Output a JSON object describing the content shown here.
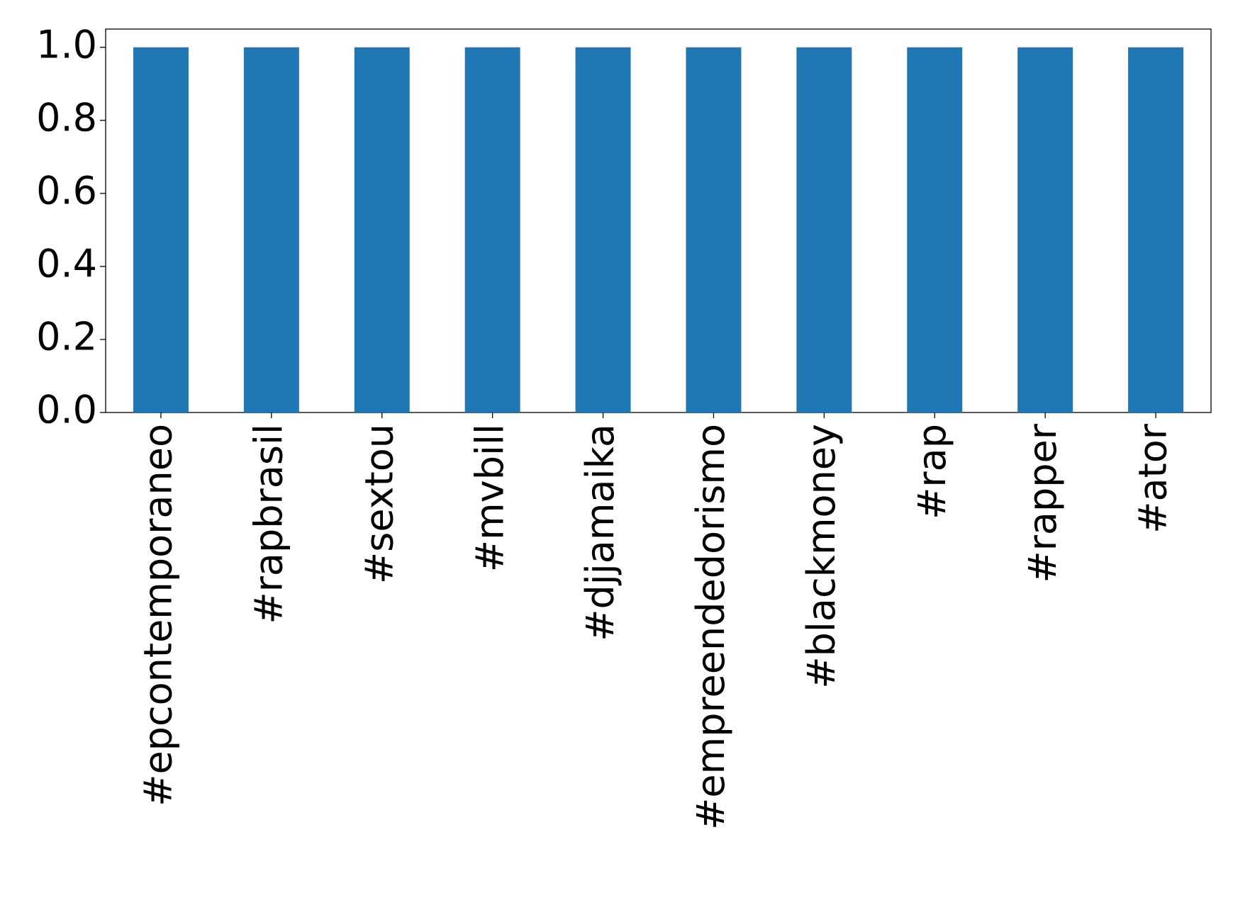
{
  "chart_data": {
    "type": "bar",
    "categories": [
      "#epcontemporaneo",
      "#rapbrasil",
      "#sextou",
      "#mvbill",
      "#djjamaika",
      "#empreendedorismo",
      "#blackmoney",
      "#rap",
      "#rapper",
      "#ator"
    ],
    "values": [
      1,
      1,
      1,
      1,
      1,
      1,
      1,
      1,
      1,
      1
    ],
    "color": "#1f77b4",
    "ylim": [
      0,
      1.05
    ],
    "yticks": [
      {
        "value": 0,
        "label": "0.0"
      },
      {
        "value": 0.2,
        "label": "0.2"
      },
      {
        "value": 0.4,
        "label": "0.4"
      },
      {
        "value": 0.6,
        "label": "0.6"
      },
      {
        "value": 0.8,
        "label": "0.8"
      },
      {
        "value": 1,
        "label": "1.0"
      }
    ],
    "grid": false
  }
}
